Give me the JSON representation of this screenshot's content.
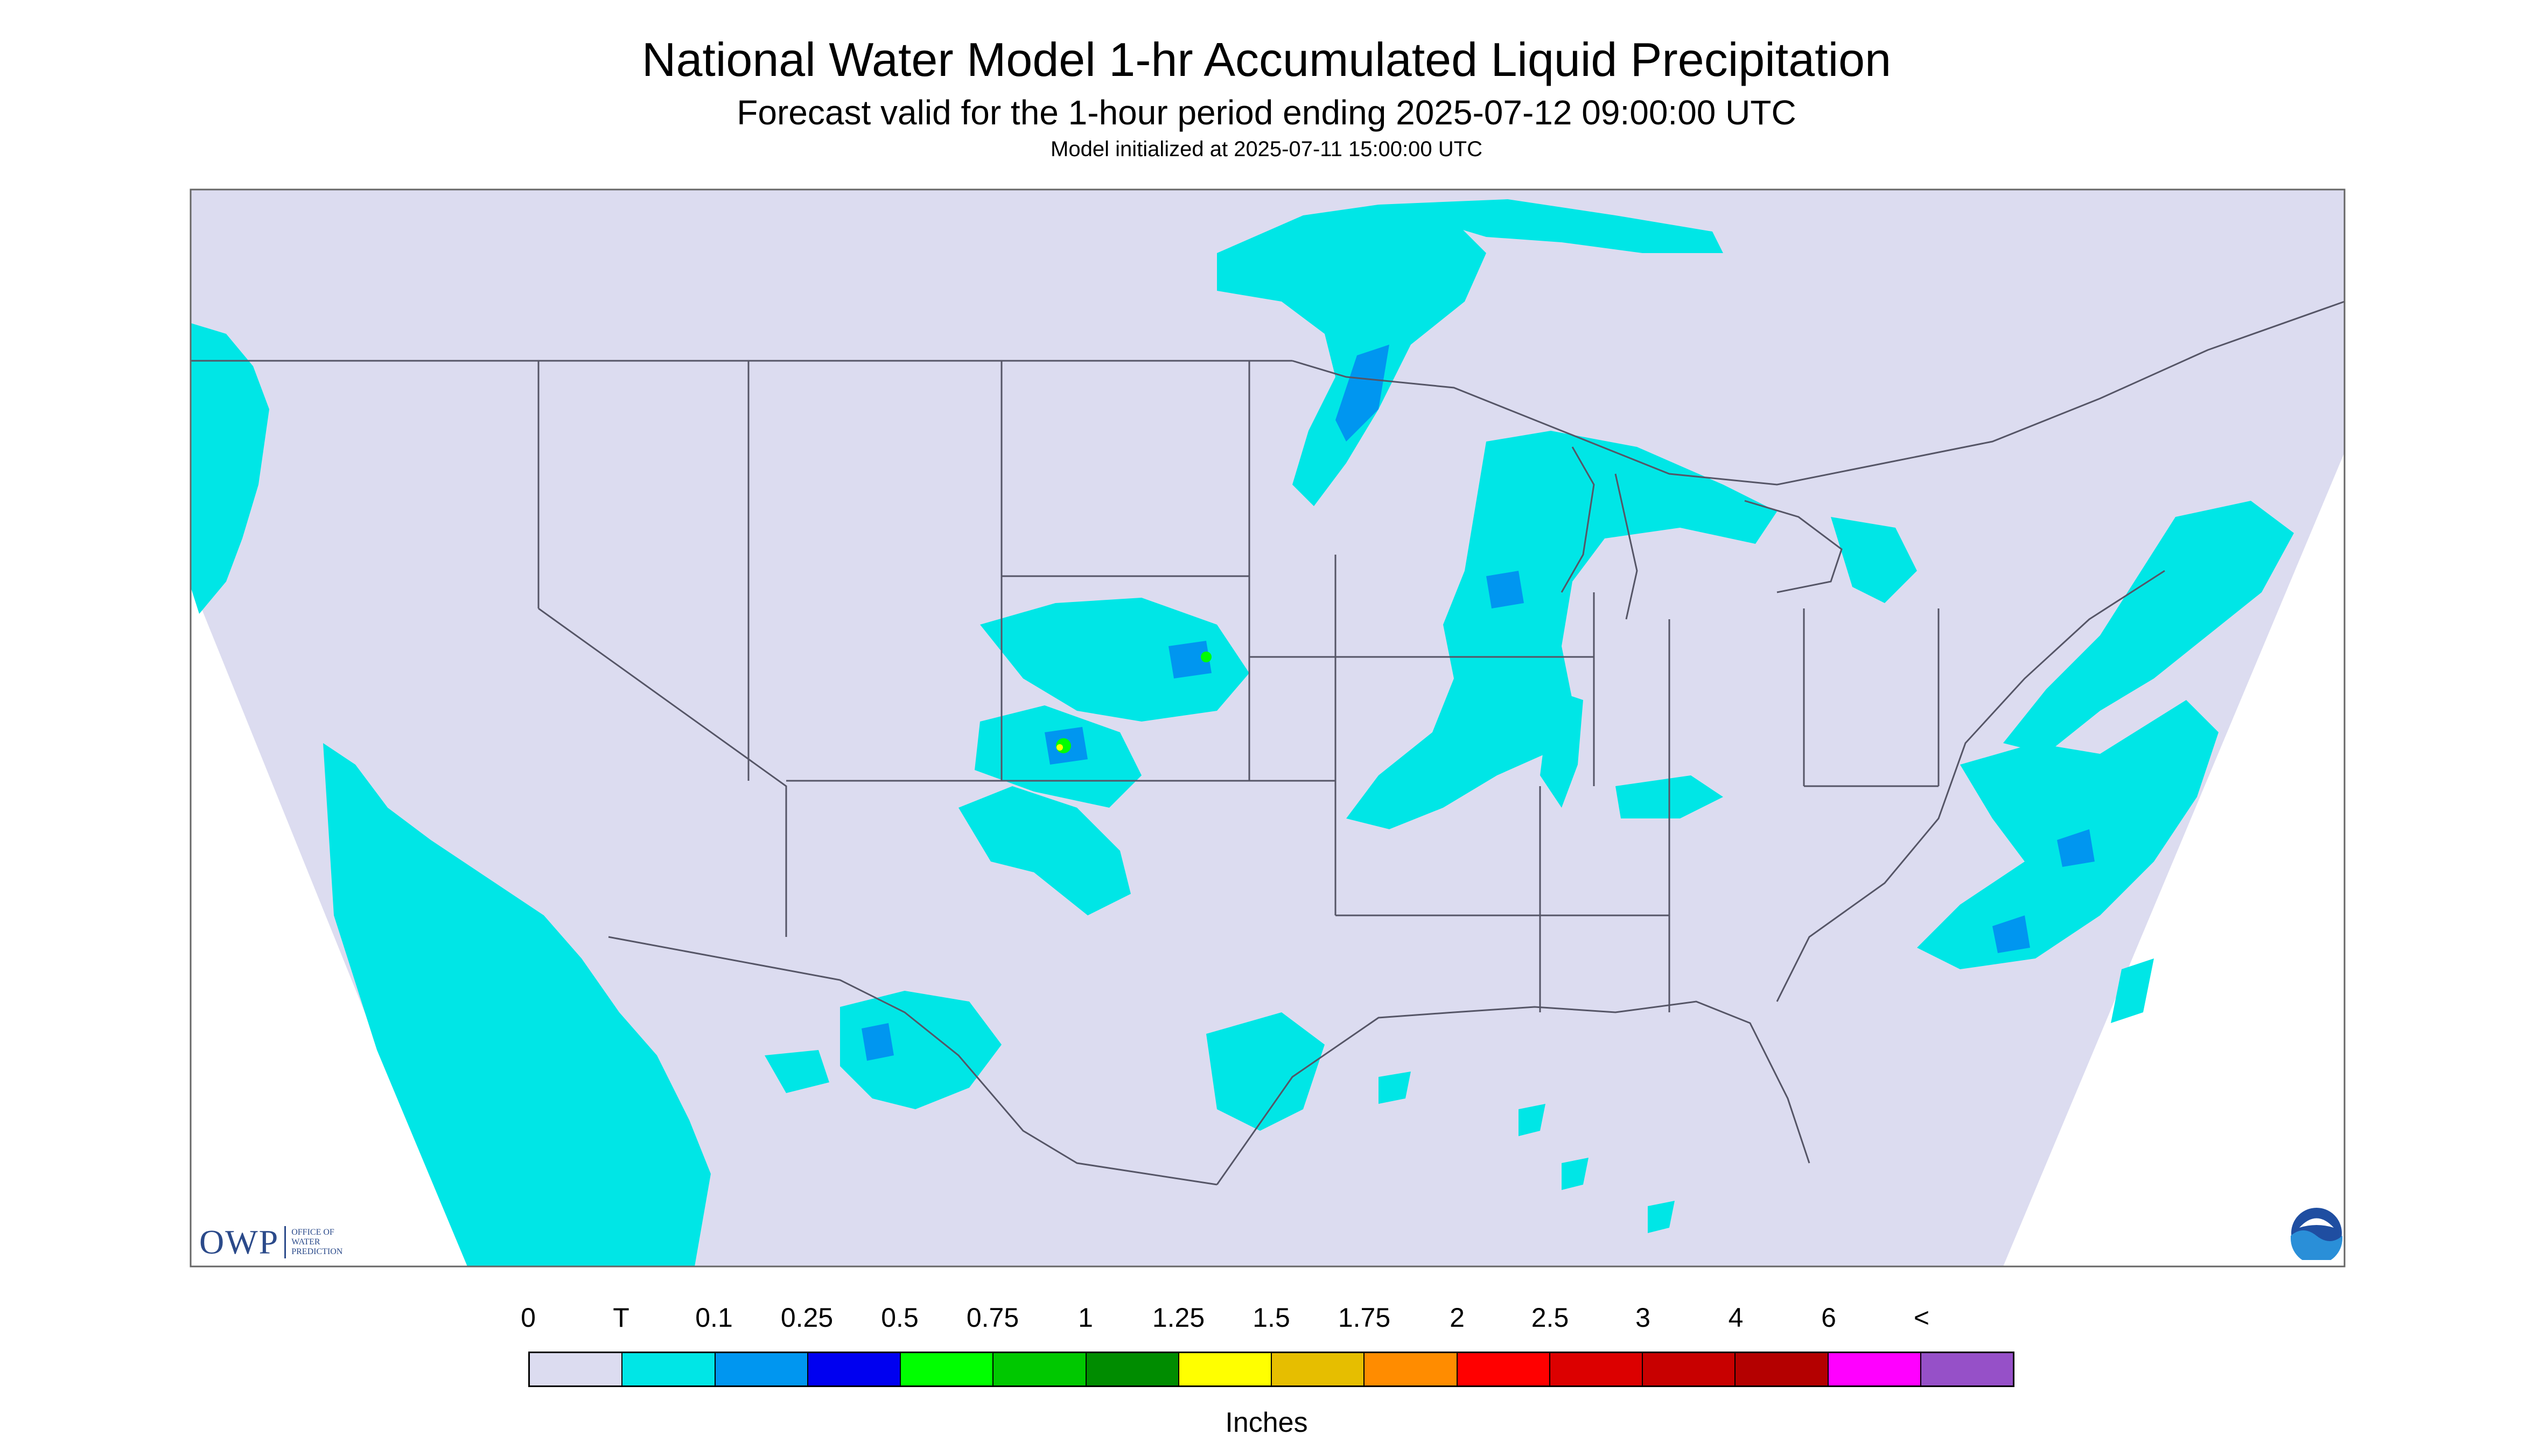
{
  "header": {
    "title": "National Water Model 1-hr Accumulated Liquid Precipitation",
    "subtitle": "Forecast valid for the 1-hour period ending 2025-07-12 09:00:00 UTC",
    "init_text": "Model initialized at 2025-07-11 15:00:00 UTC"
  },
  "legend": {
    "labels": [
      "0",
      "T",
      "0.1",
      "0.25",
      "0.5",
      "0.75",
      "1",
      "1.25",
      "1.5",
      "1.75",
      "2",
      "2.5",
      "3",
      "4",
      "6",
      "<"
    ],
    "colors": [
      "#dcdcf0",
      "#00e6e6",
      "#0096f0",
      "#0000f0",
      "#00ff00",
      "#00c800",
      "#008c00",
      "#ffff00",
      "#e6be00",
      "#ff8c00",
      "#ff0000",
      "#dc0000",
      "#c80000",
      "#b40000",
      "#ff00ff",
      "#9650c8"
    ],
    "units": "Inches"
  },
  "logos": {
    "owp_mark": "OWP",
    "owp_text": [
      "OFFICE OF",
      "WATER",
      "PREDICTION"
    ],
    "noaa_icon": "noaa-logo-icon"
  },
  "map": {
    "background_color": "#dcdcf0",
    "precip_color": "#00e6e6",
    "boundary_color": "#555566"
  }
}
